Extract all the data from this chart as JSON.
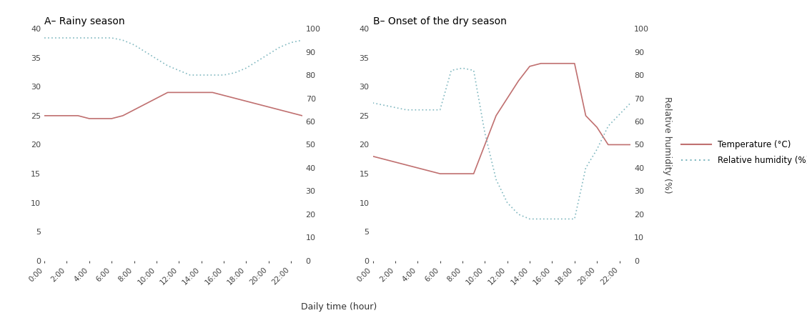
{
  "title_A": "A– Rainy season",
  "title_B": "B– Onset of the dry season",
  "xlabel": "Daily time (hour)",
  "ylabel_right": "Relative humidity (%)",
  "temp_color": "#c07070",
  "humidity_color": "#80b8c0",
  "legend_temp": "Temperature (°C)",
  "legend_humidity": "Relative humidity (%)",
  "hours": [
    0,
    1,
    2,
    3,
    4,
    5,
    6,
    7,
    8,
    9,
    10,
    11,
    12,
    13,
    14,
    15,
    16,
    17,
    18,
    19,
    20,
    21,
    22,
    23
  ],
  "rs_temp": [
    25.0,
    25.0,
    25.0,
    25.0,
    24.5,
    24.5,
    24.5,
    25.0,
    26.0,
    27.0,
    28.0,
    29.0,
    29.0,
    29.0,
    29.0,
    29.0,
    28.5,
    28.0,
    27.5,
    27.0,
    26.5,
    26.0,
    25.5,
    25.0
  ],
  "rs_humidity": [
    96,
    96,
    96,
    96,
    96,
    96,
    96,
    95,
    93,
    90,
    87,
    84,
    82,
    80,
    80,
    80,
    80,
    81,
    83,
    86,
    89,
    92,
    94,
    95
  ],
  "ods_temp": [
    18.0,
    17.5,
    17.0,
    16.5,
    16.0,
    15.5,
    15.0,
    15.0,
    15.0,
    15.0,
    20.0,
    25.0,
    28.0,
    31.0,
    33.5,
    34.0,
    34.0,
    34.0,
    34.0,
    25.0,
    23.0,
    20.0,
    20.0,
    20.0
  ],
  "ods_humidity": [
    68,
    67,
    66,
    65,
    65,
    65,
    65,
    82,
    83,
    82,
    55,
    35,
    25,
    20,
    18,
    18,
    18,
    18,
    18,
    40,
    48,
    58,
    63,
    68
  ],
  "ylim_temp": [
    0,
    40
  ],
  "ylim_humidity": [
    0,
    100
  ],
  "yticks_temp": [
    0,
    5,
    10,
    15,
    20,
    25,
    30,
    35,
    40
  ],
  "yticks_humidity": [
    0,
    10,
    20,
    30,
    40,
    50,
    60,
    70,
    80,
    90,
    100
  ],
  "xticks": [
    0,
    2,
    4,
    6,
    8,
    10,
    12,
    14,
    16,
    18,
    20,
    22
  ],
  "xtick_labels": [
    "0:00",
    "2:00",
    "4:00",
    "6:00",
    "8:00",
    "10:00",
    "12:00",
    "14:00",
    "16:00",
    "18:00",
    "20:00",
    "22:00"
  ]
}
